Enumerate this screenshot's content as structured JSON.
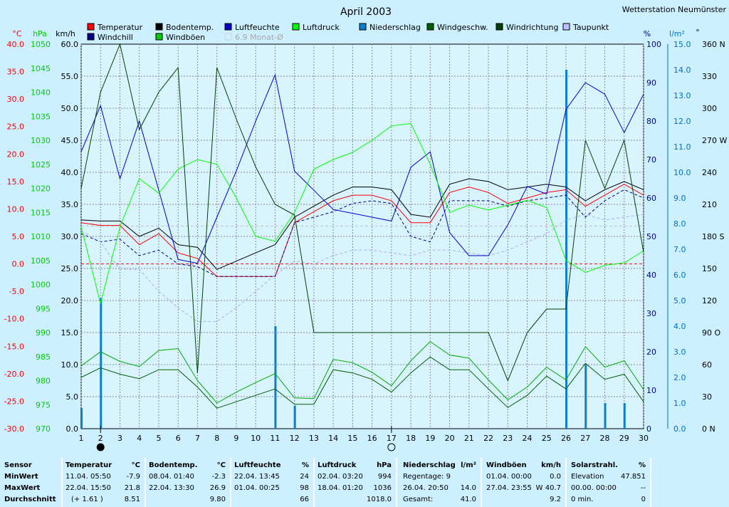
{
  "title": "April 2003",
  "station": "Wetterstation Neumünster",
  "colors": {
    "temp": "#ff0000",
    "windchill": "#00008b",
    "boden": "#000000",
    "bodenmonat": "#808080",
    "luftfeuchte": "#0000cc",
    "luftdruck": "#00cc00",
    "niederschlag": "#0a7fd0",
    "windgeschw": "#005000",
    "windboen": "#00aa00",
    "windrichtung": "#004000",
    "taupunkt": "#a0a0ff",
    "avg": "#c0c0c0",
    "axis_temp": "#ff0000",
    "axis_hpa": "#00cc00",
    "axis_kmh": "#000000",
    "axis_pct": "#000080",
    "axis_lm2": "#0070c0",
    "axis_deg": "#000000"
  },
  "legend": [
    {
      "label": "Temperatur",
      "color": "#ff0000"
    },
    {
      "label": "Bodentemp.",
      "color": "#000000"
    },
    {
      "label": "Luftfeuchte",
      "color": "#0000cc"
    },
    {
      "label": "Luftdruck",
      "color": "#00ff00"
    },
    {
      "label": "Niederschlag",
      "color": "#0a7fd0"
    },
    {
      "label": "Windgeschw.",
      "color": "#006000"
    },
    {
      "label": "Windrichtung",
      "color": "#004000"
    },
    {
      "label": "Taupunkt",
      "color": "#c0c0ff"
    },
    {
      "label": "Windchill",
      "color": "#00008b"
    },
    {
      "label": "Windböen",
      "color": "#00cc00"
    },
    {
      "label": "6.9 Monat-Ø",
      "color": "#e0e0e0"
    }
  ],
  "chart_data": {
    "type": "line",
    "x": [
      1,
      2,
      3,
      4,
      5,
      6,
      7,
      8,
      9,
      10,
      11,
      12,
      13,
      14,
      15,
      16,
      17,
      18,
      19,
      20,
      21,
      22,
      23,
      24,
      25,
      26,
      27,
      28,
      29,
      30
    ],
    "axes": {
      "temp": {
        "unit": "°C",
        "min": -30,
        "max": 40,
        "ticks": [
          "40.0",
          "35.0",
          "30.0",
          "25.0",
          "20.0",
          "15.0",
          "10.0",
          "5.0",
          "0.0",
          "-5.0",
          "-10.0",
          "-15.0",
          "-20.0",
          "-25.0",
          "-30.0"
        ]
      },
      "hpa": {
        "unit": "hPa",
        "min": 970,
        "max": 1050,
        "ticks": [
          "1050",
          "1045",
          "1040",
          "1035",
          "1030",
          "1025",
          "1020",
          "1015",
          "1010",
          "1005",
          "1000",
          "995",
          "990",
          "985",
          "980",
          "975",
          "970"
        ]
      },
      "kmh": {
        "unit": "km/h",
        "min": 0,
        "max": 60,
        "ticks": [
          "60.0",
          "55.0",
          "50.0",
          "45.0",
          "40.0",
          "35.0",
          "30.0",
          "25.0",
          "20.0",
          "15.0",
          "10.0",
          "5.0",
          "0.0"
        ]
      },
      "pct": {
        "unit": "%",
        "min": 0,
        "max": 100,
        "ticks": [
          "100",
          "90",
          "80",
          "70",
          "60",
          "50",
          "40",
          "30",
          "20",
          "10",
          "0"
        ]
      },
      "lm2": {
        "unit": "l/m²",
        "min": 0,
        "max": 15,
        "ticks": [
          "15.0",
          "14.0",
          "13.0",
          "12.0",
          "11.0",
          "10.0",
          "9.0",
          "8.0",
          "7.0",
          "6.0",
          "5.0",
          "4.0",
          "3.0",
          "2.0",
          "1.0",
          "0.0"
        ]
      },
      "deg": {
        "unit": "°",
        "min": 0,
        "max": 360,
        "ticks": [
          "360 N",
          "330",
          "300",
          "270 W",
          "240",
          "210",
          "180 S",
          "150",
          "120",
          "90 O",
          "60",
          "30",
          "0 N"
        ]
      }
    },
    "x_ticks": [
      "1",
      "2",
      "3",
      "4",
      "5",
      "6",
      "7",
      "8",
      "9",
      "10",
      "11",
      "12",
      "13",
      "14",
      "15",
      "16",
      "17",
      "18",
      "19",
      "20",
      "21",
      "22",
      "23",
      "24",
      "25",
      "26",
      "27",
      "28",
      "29",
      "30"
    ],
    "series": [
      {
        "name": "Temperatur",
        "axis": "temp",
        "color": "#ff0000",
        "values": [
          7.5,
          7.0,
          7.0,
          3.5,
          5.5,
          2.0,
          1.0,
          -2.3,
          -2.3,
          -2.3,
          -2.3,
          7.5,
          9.5,
          11.5,
          12.5,
          12.5,
          11.5,
          7.5,
          7.5,
          13.0,
          14.0,
          13.0,
          11.0,
          12.0,
          13.0,
          13.5,
          10.5,
          12.5,
          14.5,
          12.5
        ]
      },
      {
        "name": "Bodentemp.",
        "axis": "temp",
        "color": "#000000",
        "values": [
          8.0,
          7.8,
          7.8,
          5.0,
          6.5,
          3.5,
          3.0,
          -1.0,
          0.5,
          2.0,
          3.5,
          8.5,
          10.5,
          12.5,
          14.0,
          14.0,
          13.5,
          9.0,
          8.5,
          14.5,
          15.5,
          15.0,
          13.5,
          14.0,
          14.5,
          14.0,
          11.5,
          13.5,
          15.0,
          13.5
        ]
      },
      {
        "name": "Windchill",
        "axis": "temp",
        "color": "#000080",
        "dashed": true,
        "values": [
          5.5,
          4.0,
          4.5,
          1.5,
          2.5,
          0.0,
          -0.5,
          -2.3,
          -2.3,
          -2.3,
          -2.3,
          7.5,
          8.5,
          9.5,
          11.0,
          11.5,
          11.0,
          5.0,
          4.0,
          11.5,
          11.5,
          11.5,
          10.5,
          11.5,
          12.0,
          12.5,
          8.5,
          11.5,
          13.5,
          12.0
        ]
      },
      {
        "name": "Taupunkt",
        "axis": "temp",
        "color": "#b0b0e0",
        "dashed": true,
        "values": [
          6.0,
          4.0,
          -1.0,
          -1.0,
          -5.0,
          -8.0,
          -10.5,
          -10.5,
          -8.0,
          -5.0,
          -2.0,
          0.5,
          0.0,
          1.5,
          2.5,
          2.5,
          2.0,
          1.5,
          2.5,
          2.5,
          2.0,
          1.5,
          2.5,
          4.0,
          5.5,
          8.0,
          9.0,
          8.0,
          8.5,
          9.0
        ]
      },
      {
        "name": "Luftfeuchte",
        "axis": "pct",
        "color": "#0000cc",
        "values": [
          72,
          84,
          65,
          80,
          62,
          44,
          43,
          55,
          67,
          80,
          92,
          67,
          62,
          57,
          56,
          55,
          54,
          68,
          72,
          51,
          45,
          45,
          53,
          63,
          61,
          83,
          90,
          87,
          77,
          87
        ]
      },
      {
        "name": "Luftdruck",
        "axis": "hpa",
        "color": "#00ff00",
        "values": [
          1012,
          996,
          1012,
          1022,
          1019,
          1024,
          1026,
          1025,
          1018,
          1010,
          1009,
          1015,
          1024,
          1026,
          1027.5,
          1030,
          1033,
          1033.5,
          1025,
          1015,
          1016.5,
          1015.5,
          1016.5,
          1017.5,
          1016,
          1005,
          1002.5,
          1004,
          1004.5,
          1007
        ]
      },
      {
        "name": "Windgeschw.",
        "axis": "kmh",
        "color": "#006000",
        "values": [
          8.0,
          9.5,
          8.5,
          7.8,
          9.2,
          9.2,
          6.5,
          3.2,
          4.2,
          5.2,
          6.2,
          3.8,
          3.8,
          9.2,
          8.7,
          7.7,
          5.7,
          8.7,
          11.2,
          9.2,
          9.2,
          6.2,
          3.3,
          5.2,
          8.2,
          6.2,
          10.2,
          7.7,
          8.5,
          4.2
        ]
      },
      {
        "name": "Windböen",
        "axis": "kmh",
        "color": "#00aa00",
        "values": [
          9.8,
          12.0,
          10.5,
          9.7,
          12.2,
          12.5,
          7.5,
          4.0,
          5.7,
          7.2,
          8.6,
          4.8,
          4.7,
          10.8,
          10.3,
          8.8,
          6.7,
          10.6,
          13.6,
          11.5,
          11.0,
          7.6,
          4.5,
          6.5,
          9.6,
          7.6,
          12.8,
          9.6,
          10.6,
          6.1
        ]
      },
      {
        "name": "Windrichtung",
        "axis": "deg",
        "color": "#004000",
        "values": [
          225,
          315,
          360,
          280,
          315,
          338,
          52,
          338,
          290,
          245,
          210,
          200,
          90,
          90,
          90,
          90,
          90,
          90,
          90,
          90,
          90,
          90,
          45,
          90,
          112,
          112,
          270,
          225,
          270,
          165
        ]
      },
      {
        "name": "Niederschlag",
        "axis": "lm2",
        "type": "bar",
        "color": "#0a7fd0",
        "values": [
          0.8,
          5.1,
          0,
          0,
          0,
          0,
          0,
          0,
          0,
          0,
          4.0,
          0.9,
          0,
          0,
          0,
          0,
          0,
          0,
          0,
          0,
          0,
          0,
          0,
          0,
          0,
          14.0,
          2.5,
          1.0,
          1.0,
          0
        ]
      }
    ],
    "reference_lines": [
      {
        "name": "Monat-Ø",
        "axis": "temp",
        "value": 6.9,
        "color": "#c0c0c0"
      },
      {
        "name": "0 °C",
        "axis": "temp",
        "value": 0,
        "color": "#ff0000"
      }
    ],
    "moon_marks": [
      {
        "day": 2,
        "phase": "new"
      },
      {
        "day": 17,
        "phase": "full"
      }
    ]
  },
  "stats": {
    "sensor": {
      "h": "Sensor",
      "min": "MinWert",
      "max": "MaxWert",
      "avg": "Durchschnitt"
    },
    "temp": {
      "h": "Temperatur",
      "u": "°C",
      "min_t": "11.04.  05:50",
      "min_v": "-7.9",
      "max_t": "22.04.  15:50",
      "max_v": "21.8",
      "avg_t": "(+ 1.61 )",
      "avg_v": "8.51"
    },
    "boden": {
      "h": "Bodentemp.",
      "u": "°C",
      "min_t": "08.04.  01:40",
      "min_v": "-2.3",
      "max_t": "22.04.  13:30",
      "max_v": "26.9",
      "avg_t": "",
      "avg_v": "9.80"
    },
    "feuchte": {
      "h": "Luftfeuchte",
      "u": "%",
      "min_t": "22.04.  13:45",
      "min_v": "24",
      "max_t": "01.04.  00:25",
      "max_v": "98",
      "avg_t": "",
      "avg_v": "66"
    },
    "druck": {
      "h": "Luftdruck",
      "u": "hPa",
      "min_t": "02.04.  03:20",
      "min_v": "994",
      "max_t": "18.04.  01:20",
      "max_v": "1036",
      "avg_t": "",
      "avg_v": "1018.0"
    },
    "regen": {
      "h": "Niederschlag",
      "u": "l/m²",
      "min_t": "Regentage: 9",
      "min_v": "",
      "max_t": "26.04.  20:50",
      "max_v": "14.0",
      "avg_t": "Gesamt:",
      "avg_v": "41.0"
    },
    "boen": {
      "h": "Windböen",
      "u": "km/h",
      "min_t": "01.04.  00:00",
      "min_v": "0.0",
      "max_t": "27.04.  23:55",
      "max_v": "W 40.7",
      "avg_t": "",
      "avg_v": "9.2"
    },
    "solar": {
      "h": "Solarstrahl.",
      "u": "%",
      "min_t": "Elevation",
      "min_v": "47.851",
      "max_t": "00.00.  00:00",
      "max_v": "--",
      "avg_t": "0 min.",
      "avg_v": "0"
    }
  }
}
